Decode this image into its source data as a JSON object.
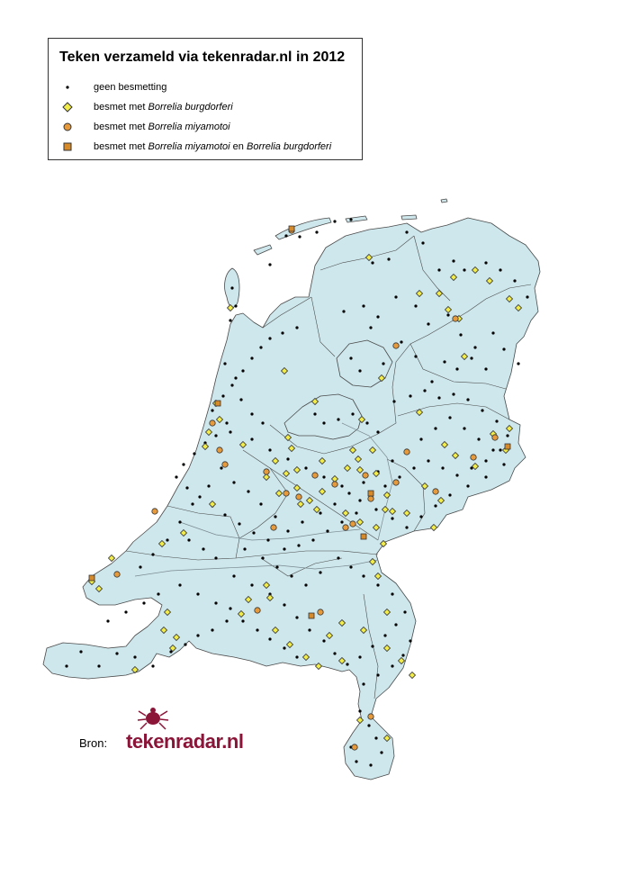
{
  "title": "Teken verzameld via tekenradar.nl in 2012",
  "legend": [
    {
      "key": "none",
      "symbol": "dot",
      "color": "#000000",
      "text_plain": "geen besmetting",
      "text_prefix": "geen besmetting",
      "species1": "",
      "mid": "",
      "species2": ""
    },
    {
      "key": "bb",
      "symbol": "diamond",
      "color": "#f2ec4a",
      "text_prefix": "besmet met ",
      "species1": "Borrelia burgdorferi",
      "mid": "",
      "species2": ""
    },
    {
      "key": "bm",
      "symbol": "circle",
      "color": "#e69a3c",
      "text_prefix": "besmet met ",
      "species1": "Borrelia miyamotoi",
      "mid": "",
      "species2": ""
    },
    {
      "key": "both",
      "symbol": "square",
      "color": "#d78a2a",
      "text_prefix": "besmet met ",
      "species1": "Borrelia miyamotoi",
      "mid": " en ",
      "species2": "Borrelia burgdorferi"
    }
  ],
  "colors": {
    "land": "#cde7ec",
    "border": "#4a4a4a",
    "logo": "#8a1538"
  },
  "source": {
    "label": "Bron:",
    "logo_text": "tekenradar.nl"
  }
}
